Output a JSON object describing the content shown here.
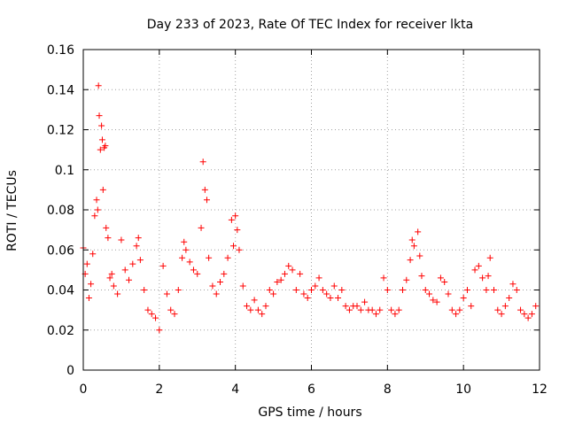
{
  "chart_data": {
    "type": "scatter",
    "title": "Day 233 of 2023, Rate Of TEC Index for receiver lkta",
    "xlabel": "GPS time / hours",
    "ylabel": "ROTI / TECUs",
    "xlim": [
      0,
      12
    ],
    "ylim": [
      0,
      0.16
    ],
    "xticks": [
      0,
      2,
      4,
      6,
      8,
      10,
      12
    ],
    "xtick_labels": [
      "0",
      "2",
      "4",
      "6",
      "8",
      "10",
      "12"
    ],
    "yticks": [
      0,
      0.02,
      0.04,
      0.06,
      0.08,
      0.1,
      0.12,
      0.14,
      0.16
    ],
    "ytick_labels": [
      "0",
      "0.02",
      "0.04",
      "0.06",
      "0.08",
      "0.1",
      "0.12",
      "0.14",
      "0.16"
    ],
    "grid": true,
    "marker": "+",
    "color": "#ff0000",
    "series": [
      {
        "name": "ROTI",
        "x": [
          0.0,
          0.05,
          0.1,
          0.15,
          0.2,
          0.25,
          0.3,
          0.35,
          0.38,
          0.4,
          0.42,
          0.45,
          0.48,
          0.5,
          0.52,
          0.55,
          0.58,
          0.6,
          0.65,
          0.7,
          0.75,
          0.8,
          0.9,
          1.0,
          1.1,
          1.2,
          1.3,
          1.4,
          1.45,
          1.5,
          1.6,
          1.7,
          1.8,
          1.9,
          2.0,
          2.1,
          2.2,
          2.3,
          2.4,
          2.5,
          2.6,
          2.65,
          2.7,
          2.8,
          2.9,
          3.0,
          3.1,
          3.15,
          3.2,
          3.25,
          3.3,
          3.4,
          3.5,
          3.6,
          3.7,
          3.8,
          3.9,
          3.95,
          4.0,
          4.05,
          4.1,
          4.2,
          4.3,
          4.4,
          4.5,
          4.6,
          4.7,
          4.8,
          4.9,
          5.0,
          5.1,
          5.2,
          5.3,
          5.4,
          5.5,
          5.6,
          5.7,
          5.8,
          5.9,
          6.0,
          6.1,
          6.2,
          6.3,
          6.4,
          6.5,
          6.6,
          6.7,
          6.8,
          6.9,
          7.0,
          7.1,
          7.2,
          7.3,
          7.4,
          7.5,
          7.6,
          7.7,
          7.8,
          7.9,
          8.0,
          8.1,
          8.2,
          8.3,
          8.4,
          8.5,
          8.6,
          8.65,
          8.7,
          8.8,
          8.85,
          8.9,
          9.0,
          9.1,
          9.2,
          9.3,
          9.4,
          9.5,
          9.6,
          9.7,
          9.8,
          9.9,
          10.0,
          10.1,
          10.2,
          10.3,
          10.4,
          10.5,
          10.6,
          10.65,
          10.7,
          10.8,
          10.9,
          11.0,
          11.1,
          11.2,
          11.3,
          11.4,
          11.5,
          11.6,
          11.7,
          11.8,
          11.9
        ],
        "y": [
          0.061,
          0.048,
          0.053,
          0.036,
          0.043,
          0.058,
          0.077,
          0.085,
          0.08,
          0.142,
          0.127,
          0.11,
          0.122,
          0.115,
          0.09,
          0.111,
          0.112,
          0.071,
          0.066,
          0.046,
          0.048,
          0.042,
          0.038,
          0.065,
          0.05,
          0.045,
          0.053,
          0.062,
          0.066,
          0.055,
          0.04,
          0.03,
          0.028,
          0.026,
          0.02,
          0.052,
          0.038,
          0.03,
          0.028,
          0.04,
          0.056,
          0.064,
          0.06,
          0.054,
          0.05,
          0.048,
          0.071,
          0.104,
          0.09,
          0.085,
          0.056,
          0.042,
          0.038,
          0.044,
          0.048,
          0.056,
          0.075,
          0.062,
          0.077,
          0.07,
          0.06,
          0.042,
          0.032,
          0.03,
          0.035,
          0.03,
          0.028,
          0.032,
          0.04,
          0.038,
          0.044,
          0.045,
          0.048,
          0.052,
          0.05,
          0.04,
          0.048,
          0.038,
          0.036,
          0.04,
          0.042,
          0.046,
          0.04,
          0.038,
          0.036,
          0.042,
          0.036,
          0.04,
          0.032,
          0.03,
          0.032,
          0.032,
          0.03,
          0.034,
          0.03,
          0.03,
          0.028,
          0.03,
          0.046,
          0.04,
          0.03,
          0.028,
          0.03,
          0.04,
          0.045,
          0.055,
          0.065,
          0.062,
          0.069,
          0.057,
          0.047,
          0.04,
          0.038,
          0.035,
          0.034,
          0.046,
          0.044,
          0.038,
          0.03,
          0.028,
          0.03,
          0.036,
          0.04,
          0.032,
          0.05,
          0.052,
          0.046,
          0.04,
          0.047,
          0.056,
          0.04,
          0.03,
          0.028,
          0.032,
          0.036,
          0.043,
          0.04,
          0.03,
          0.028,
          0.026,
          0.028,
          0.032
        ]
      }
    ]
  }
}
